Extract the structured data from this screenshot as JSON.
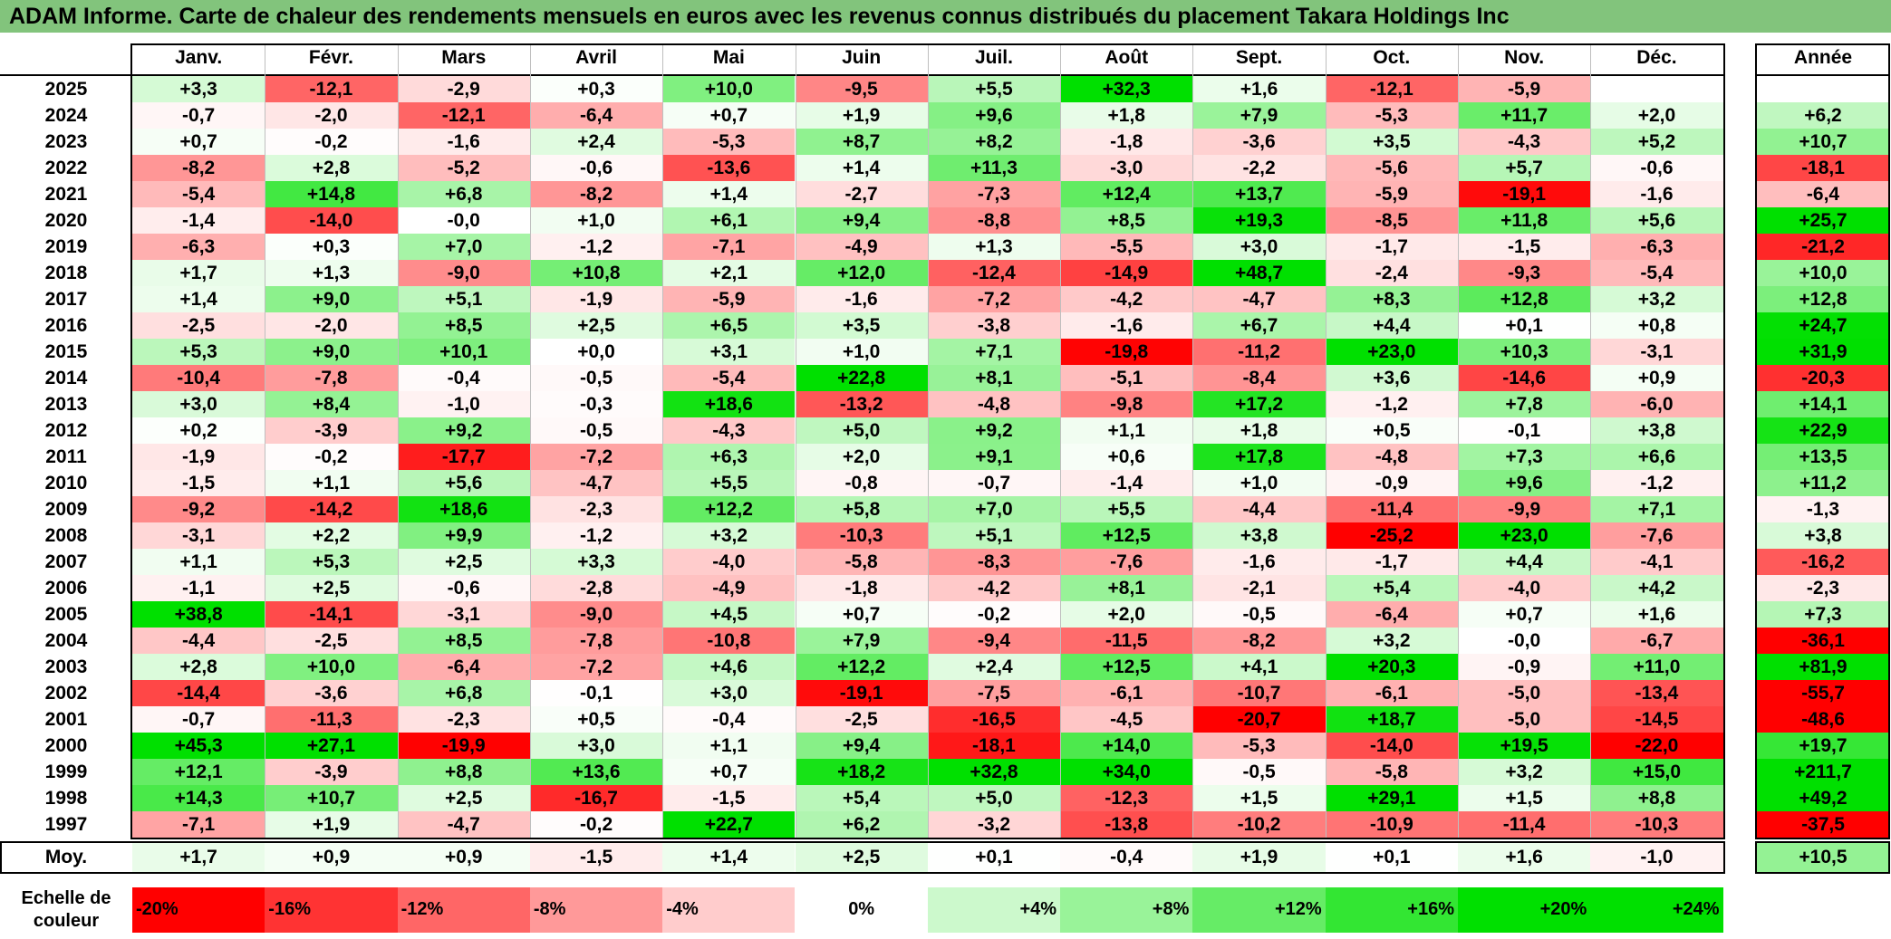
{
  "title": "ADAM Informe. Carte de chaleur des rendements mensuels en euros avec les revenus connus distribués du placement Takara Holdings Inc",
  "chart_data": {
    "type": "heatmap",
    "months": [
      "Janv.",
      "Févr.",
      "Mars",
      "Avril",
      "Mai",
      "Juin",
      "Juil.",
      "Août",
      "Sept.",
      "Oct.",
      "Nov.",
      "Déc."
    ],
    "year_label": "Année",
    "rows": [
      {
        "year": "2025",
        "values": [
          "+3,3",
          "-12,1",
          "-2,9",
          "+0,3",
          "+10,0",
          "-9,5",
          "+5,5",
          "+32,3",
          "+1,6",
          "-12,1",
          "-5,9",
          ""
        ],
        "annual": ""
      },
      {
        "year": "2024",
        "values": [
          "-0,7",
          "-2,0",
          "-12,1",
          "-6,4",
          "+0,7",
          "+1,9",
          "+9,6",
          "+1,8",
          "+7,9",
          "-5,3",
          "+11,7",
          "+2,0"
        ],
        "annual": "+6,2"
      },
      {
        "year": "2023",
        "values": [
          "+0,7",
          "-0,2",
          "-1,6",
          "+2,4",
          "-5,3",
          "+8,7",
          "+8,2",
          "-1,8",
          "-3,6",
          "+3,5",
          "-4,3",
          "+5,2"
        ],
        "annual": "+10,7"
      },
      {
        "year": "2022",
        "values": [
          "-8,2",
          "+2,8",
          "-5,2",
          "-0,6",
          "-13,6",
          "+1,4",
          "+11,3",
          "-3,0",
          "-2,2",
          "-5,6",
          "+5,7",
          "-0,6"
        ],
        "annual": "-18,1"
      },
      {
        "year": "2021",
        "values": [
          "-5,4",
          "+14,8",
          "+6,8",
          "-8,2",
          "+1,4",
          "-2,7",
          "-7,3",
          "+12,4",
          "+13,7",
          "-5,9",
          "-19,1",
          "-1,6"
        ],
        "annual": "-6,4"
      },
      {
        "year": "2020",
        "values": [
          "-1,4",
          "-14,0",
          "-0,0",
          "+1,0",
          "+6,1",
          "+9,4",
          "-8,8",
          "+8,5",
          "+19,3",
          "-8,5",
          "+11,8",
          "+5,6"
        ],
        "annual": "+25,7"
      },
      {
        "year": "2019",
        "values": [
          "-6,3",
          "+0,3",
          "+7,0",
          "-1,2",
          "-7,1",
          "-4,9",
          "+1,3",
          "-5,5",
          "+3,0",
          "-1,7",
          "-1,5",
          "-6,3"
        ],
        "annual": "-21,2"
      },
      {
        "year": "2018",
        "values": [
          "+1,7",
          "+1,3",
          "-9,0",
          "+10,8",
          "+2,1",
          "+12,0",
          "-12,4",
          "-14,9",
          "+48,7",
          "-2,4",
          "-9,3",
          "-5,4"
        ],
        "annual": "+10,0"
      },
      {
        "year": "2017",
        "values": [
          "+1,4",
          "+9,0",
          "+5,1",
          "-1,9",
          "-5,9",
          "-1,6",
          "-7,2",
          "-4,2",
          "-4,7",
          "+8,3",
          "+12,8",
          "+3,2"
        ],
        "annual": "+12,8"
      },
      {
        "year": "2016",
        "values": [
          "-2,5",
          "-2,0",
          "+8,5",
          "+2,5",
          "+6,5",
          "+3,5",
          "-3,8",
          "-1,6",
          "+6,7",
          "+4,4",
          "+0,1",
          "+0,8"
        ],
        "annual": "+24,7"
      },
      {
        "year": "2015",
        "values": [
          "+5,3",
          "+9,0",
          "+10,1",
          "+0,0",
          "+3,1",
          "+1,0",
          "+7,1",
          "-19,8",
          "-11,2",
          "+23,0",
          "+10,3",
          "-3,1"
        ],
        "annual": "+31,9"
      },
      {
        "year": "2014",
        "values": [
          "-10,4",
          "-7,8",
          "-0,4",
          "-0,5",
          "-5,4",
          "+22,8",
          "+8,1",
          "-5,1",
          "-8,4",
          "+3,6",
          "-14,6",
          "+0,9"
        ],
        "annual": "-20,3"
      },
      {
        "year": "2013",
        "values": [
          "+3,0",
          "+8,4",
          "-1,0",
          "-0,3",
          "+18,6",
          "-13,2",
          "-4,8",
          "-9,8",
          "+17,2",
          "-1,2",
          "+7,8",
          "-6,0"
        ],
        "annual": "+14,1"
      },
      {
        "year": "2012",
        "values": [
          "+0,2",
          "-3,9",
          "+9,2",
          "-0,5",
          "-4,3",
          "+5,0",
          "+9,2",
          "+1,1",
          "+1,8",
          "+0,5",
          "-0,1",
          "+3,8"
        ],
        "annual": "+22,9"
      },
      {
        "year": "2011",
        "values": [
          "-1,9",
          "-0,2",
          "-17,7",
          "-7,2",
          "+6,3",
          "+2,0",
          "+9,1",
          "+0,6",
          "+17,8",
          "-4,8",
          "+7,3",
          "+6,6"
        ],
        "annual": "+13,5"
      },
      {
        "year": "2010",
        "values": [
          "-1,5",
          "+1,1",
          "+5,6",
          "-4,7",
          "+5,5",
          "-0,8",
          "-0,7",
          "-1,4",
          "+1,0",
          "-0,9",
          "+9,6",
          "-1,2"
        ],
        "annual": "+11,2"
      },
      {
        "year": "2009",
        "values": [
          "-9,2",
          "-14,2",
          "+18,6",
          "-2,3",
          "+12,2",
          "+5,8",
          "+7,0",
          "+5,5",
          "-4,4",
          "-11,4",
          "-9,9",
          "+7,1"
        ],
        "annual": "-1,3"
      },
      {
        "year": "2008",
        "values": [
          "-3,1",
          "+2,2",
          "+9,9",
          "-1,2",
          "+3,2",
          "-10,3",
          "+5,1",
          "+12,5",
          "+3,8",
          "-25,2",
          "+23,0",
          "-7,6"
        ],
        "annual": "+3,8"
      },
      {
        "year": "2007",
        "values": [
          "+1,1",
          "+5,3",
          "+2,5",
          "+3,3",
          "-4,0",
          "-5,8",
          "-8,3",
          "-7,6",
          "-1,6",
          "-1,7",
          "+4,4",
          "-4,1"
        ],
        "annual": "-16,2"
      },
      {
        "year": "2006",
        "values": [
          "-1,1",
          "+2,5",
          "-0,6",
          "-2,8",
          "-4,9",
          "-1,8",
          "-4,2",
          "+8,1",
          "-2,1",
          "+5,4",
          "-4,0",
          "+4,2"
        ],
        "annual": "-2,3"
      },
      {
        "year": "2005",
        "values": [
          "+38,8",
          "-14,1",
          "-3,1",
          "-9,0",
          "+4,5",
          "+0,7",
          "-0,2",
          "+2,0",
          "-0,5",
          "-6,4",
          "+0,7",
          "+1,6"
        ],
        "annual": "+7,3"
      },
      {
        "year": "2004",
        "values": [
          "-4,4",
          "-2,5",
          "+8,5",
          "-7,8",
          "-10,8",
          "+7,9",
          "-9,4",
          "-11,5",
          "-8,2",
          "+3,2",
          "-0,0",
          "-6,7"
        ],
        "annual": "-36,1"
      },
      {
        "year": "2003",
        "values": [
          "+2,8",
          "+10,0",
          "-6,4",
          "-7,2",
          "+4,6",
          "+12,2",
          "+2,4",
          "+12,5",
          "+4,1",
          "+20,3",
          "-0,9",
          "+11,0"
        ],
        "annual": "+81,9"
      },
      {
        "year": "2002",
        "values": [
          "-14,4",
          "-3,6",
          "+6,8",
          "-0,1",
          "+3,0",
          "-19,1",
          "-7,5",
          "-6,1",
          "-10,7",
          "-6,1",
          "-5,0",
          "-13,4"
        ],
        "annual": "-55,7"
      },
      {
        "year": "2001",
        "values": [
          "-0,7",
          "-11,3",
          "-2,3",
          "+0,5",
          "-0,4",
          "-2,5",
          "-16,5",
          "-4,5",
          "-20,7",
          "+18,7",
          "-5,0",
          "-14,5"
        ],
        "annual": "-48,6"
      },
      {
        "year": "2000",
        "values": [
          "+45,3",
          "+27,1",
          "-19,9",
          "+3,0",
          "+1,1",
          "+9,4",
          "-18,1",
          "+14,0",
          "-5,3",
          "-14,0",
          "+19,5",
          "-22,0"
        ],
        "annual": "+19,7"
      },
      {
        "year": "1999",
        "values": [
          "+12,1",
          "-3,9",
          "+8,8",
          "+13,6",
          "+0,7",
          "+18,2",
          "+32,8",
          "+34,0",
          "-0,5",
          "-5,8",
          "+3,2",
          "+15,0"
        ],
        "annual": "+211,7"
      },
      {
        "year": "1998",
        "values": [
          "+14,3",
          "+10,7",
          "+2,5",
          "-16,7",
          "-1,5",
          "+5,4",
          "+5,0",
          "-12,3",
          "+1,5",
          "+29,1",
          "+1,5",
          "+8,8"
        ],
        "annual": "+49,2"
      },
      {
        "year": "1997",
        "values": [
          "-7,1",
          "+1,9",
          "-4,7",
          "-0,2",
          "+22,7",
          "+6,2",
          "-3,2",
          "-13,8",
          "-10,2",
          "-10,9",
          "-11,4",
          "-10,3"
        ],
        "annual": "-37,5"
      }
    ],
    "average": {
      "label": "Moy.",
      "values": [
        "+1,7",
        "+0,9",
        "+0,9",
        "-1,5",
        "+1,4",
        "+2,5",
        "+0,1",
        "-0,4",
        "+1,9",
        "+0,1",
        "+1,6",
        "-1,0"
      ],
      "annual": "+10,5"
    },
    "scale": {
      "label": "Echelle de couleur",
      "items": [
        "-20%",
        "-16%",
        "-12%",
        "-8%",
        "-4%",
        "0%",
        "+4%",
        "+8%",
        "+12%",
        "+16%",
        "+20%",
        "+24%"
      ]
    },
    "colors": {
      "negative": "#ff0000",
      "neutral": "#ffffff",
      "positive": "#00e000"
    }
  }
}
